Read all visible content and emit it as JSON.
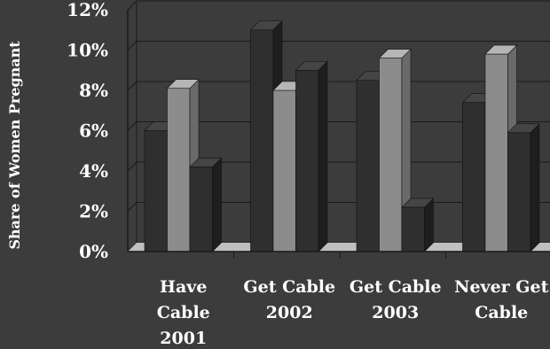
{
  "chart_data": {
    "type": "bar",
    "title": "",
    "xlabel": "",
    "ylabel": "Share of Women Pregnant",
    "ylim": [
      0,
      12
    ],
    "yticks": [
      "0%",
      "2%",
      "4%",
      "6%",
      "8%",
      "10%",
      "12%"
    ],
    "categories": [
      [
        "Have",
        "Cable",
        "2001"
      ],
      [
        "Get Cable",
        "2002"
      ],
      [
        "Get Cable",
        "2003"
      ],
      [
        "Never Get",
        "Cable"
      ]
    ],
    "series": [
      {
        "values": [
          6.0,
          11.0,
          8.5,
          7.4
        ]
      },
      {
        "values": [
          8.1,
          8.0,
          9.6,
          9.8
        ]
      },
      {
        "values": [
          4.2,
          9.0,
          2.2,
          5.9
        ]
      }
    ],
    "grid": true,
    "legend": "none",
    "colors": {
      "background": "#3c3c3c",
      "series": [
        "#2f2f2f",
        "#8c8c8c",
        "#2f2f2f"
      ],
      "series_side": [
        "#1e1e1e",
        "#6a6a6a",
        "#1e1e1e"
      ],
      "series_top": [
        "#454545",
        "#b5b5b5",
        "#454545"
      ],
      "gridline": "#1a1a1a",
      "floor": "#bfbfbf",
      "text": "#ffffff"
    }
  }
}
